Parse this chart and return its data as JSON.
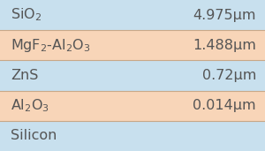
{
  "rows": [
    {
      "label": "SiO$_2$",
      "value": "4.975μm",
      "bg": "#c8e0ee"
    },
    {
      "label": "MgF$_2$-Al$_2$O$_3$",
      "value": "1.488μm",
      "bg": "#f8d5b8"
    },
    {
      "label": "ZnS",
      "value": "0.72μm",
      "bg": "#c8e0ee"
    },
    {
      "label": "Al$_2$O$_3$",
      "value": "0.014μm",
      "bg": "#f8d5b8"
    },
    {
      "label": "Silicon",
      "value": "",
      "bg": "#c8e0ee"
    }
  ],
  "fig_bg": "#c8e0ee",
  "border_color": "#c8a888",
  "sep_color": "#c8a888",
  "text_color": "#555555",
  "font_size": 11.5
}
